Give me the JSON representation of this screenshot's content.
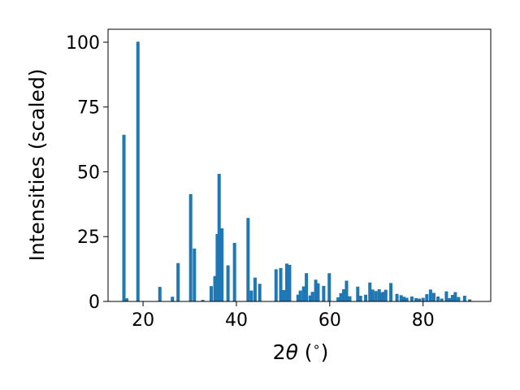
{
  "chart_data": {
    "type": "bar",
    "title": "",
    "xlabel": "2θ (°)",
    "xlabel_parts": {
      "prefix": "2",
      "symbol": "θ",
      "suffix": " (",
      "degree": "∘",
      "close": ")"
    },
    "ylabel": "Intensities (scaled)",
    "xlim": [
      12.5,
      94.5
    ],
    "ylim": [
      0,
      105
    ],
    "x_ticks": [
      20,
      40,
      60,
      80
    ],
    "y_ticks": [
      0,
      25,
      50,
      75,
      100
    ],
    "grid": false,
    "color": "#1f77b4",
    "bar_width": 0.7,
    "x": [
      15.9,
      16.5,
      18.9,
      23.6,
      26.3,
      27.5,
      30.2,
      31.0,
      32.8,
      34.6,
      35.4,
      35.9,
      36.3,
      36.9,
      38.2,
      39.6,
      42.5,
      43.2,
      44.0,
      45.0,
      48.5,
      49.5,
      50.1,
      50.8,
      51.4,
      53.2,
      53.7,
      54.4,
      55.0,
      55.8,
      56.3,
      57.0,
      57.5,
      58.7,
      59.9,
      61.8,
      62.4,
      63.0,
      63.6,
      64.3,
      66.0,
      66.6,
      67.7,
      68.6,
      69.2,
      69.9,
      70.6,
      71.1,
      71.6,
      72.0,
      73.1,
      74.4,
      75.3,
      75.9,
      76.5,
      77.6,
      78.5,
      79.2,
      80.0,
      80.8,
      81.6,
      82.3,
      83.2,
      84.0,
      85.0,
      85.7,
      86.3,
      86.9,
      87.6,
      88.9,
      90.0
    ],
    "values": [
      64.3,
      1.2,
      100.2,
      5.6,
      1.8,
      14.8,
      41.4,
      20.4,
      0.6,
      5.9,
      9.8,
      26.0,
      49.2,
      28.2,
      13.9,
      22.6,
      32.2,
      4.2,
      9.2,
      6.8,
      12.4,
      12.9,
      4.4,
      14.6,
      14.1,
      2.6,
      4.2,
      5.8,
      10.9,
      2.3,
      3.7,
      8.4,
      7.0,
      6.0,
      10.9,
      1.6,
      3.2,
      4.7,
      8.0,
      2.0,
      5.7,
      2.2,
      2.6,
      7.3,
      4.6,
      4.0,
      4.7,
      3.5,
      3.7,
      4.5,
      7.1,
      2.9,
      2.4,
      1.8,
      1.4,
      1.9,
      1.3,
      1.1,
      1.4,
      2.8,
      4.6,
      3.3,
      1.9,
      1.1,
      3.9,
      1.3,
      2.5,
      3.6,
      1.7,
      2.2,
      0.8
    ]
  }
}
